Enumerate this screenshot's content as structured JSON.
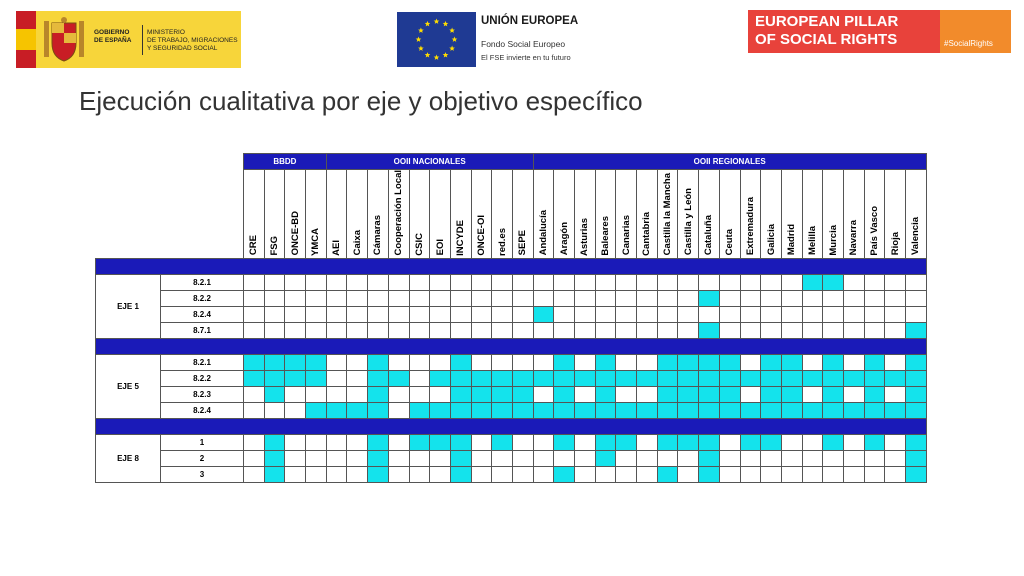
{
  "logos": {
    "gobierno": {
      "line1": "GOBIERNO\nDE ESPAÑA",
      "line2": "MINISTERIO\nDE TRABAJO, MIGRACIONES\nY SEGURIDAD SOCIAL"
    },
    "eu": {
      "title": "UNIÓN EUROPEA",
      "sub1": "Fondo Social Europeo",
      "sub2": "El FSE invierte en tu futuro"
    },
    "pillar": {
      "text": "EUROPEAN PILLAR\nOF SOCIAL RIGHTS",
      "tag": "#SocialRights"
    }
  },
  "title": "Ejecución cualitativa por eje y objetivo específico",
  "table": {
    "groups": [
      {
        "label": "BBDD",
        "span": 4
      },
      {
        "label": "OOII NACIONALES",
        "span": 10
      },
      {
        "label": "OOII REGIONALES",
        "span": 19
      }
    ],
    "columns": [
      "CRE",
      "FSG",
      "ONCE-BD",
      "YMCA",
      "AEI",
      "Caixa",
      "Cámaras",
      "Cooperación Local",
      "CSIC",
      "EOI",
      "INCYDE",
      "ONCE-OI",
      "red.es",
      "SEPE",
      "Andalucía",
      "Aragón",
      "Asturias",
      "Baleares",
      "Canarias",
      "Cantabria",
      "Castilla la Mancha",
      "Castilla y León",
      "Cataluña",
      "Ceuta",
      "Extremadura",
      "Galicia",
      "Madrid",
      "Melilla",
      "Murcia",
      "Navarra",
      "País Vasco",
      "Rioja",
      "Valencia"
    ],
    "ejes": [
      {
        "label": "EJE 1",
        "rows": [
          {
            "obj": "8.2.1",
            "cells": "000000000000000000000000000110000"
          },
          {
            "obj": "8.2.2",
            "cells": "000000000000000000000010000000000"
          },
          {
            "obj": "8.2.4",
            "cells": "000000000000001000000000000000000"
          },
          {
            "obj": "8.7.1",
            "cells": "000000000000000000000010000000001"
          }
        ]
      },
      {
        "label": "EJE 5",
        "rows": [
          {
            "obj": "8.2.1",
            "cells": "111100100010000101001111011010101"
          },
          {
            "obj": "8.2.2",
            "cells": "111100110111111111111111111111111"
          },
          {
            "obj": "8.2.3",
            "cells": "010000100011110101001111011010101"
          },
          {
            "obj": "8.2.4",
            "cells": "000111101111111111111111111111111"
          }
        ]
      },
      {
        "label": "EJE 8",
        "rows": [
          {
            "obj": "1",
            "cells": "010000101110100101101110110010101"
          },
          {
            "obj": "2",
            "cells": "010000100010000001000010000000001"
          },
          {
            "obj": "3",
            "cells": "010000100010000100001010000000001"
          }
        ]
      }
    ]
  }
}
